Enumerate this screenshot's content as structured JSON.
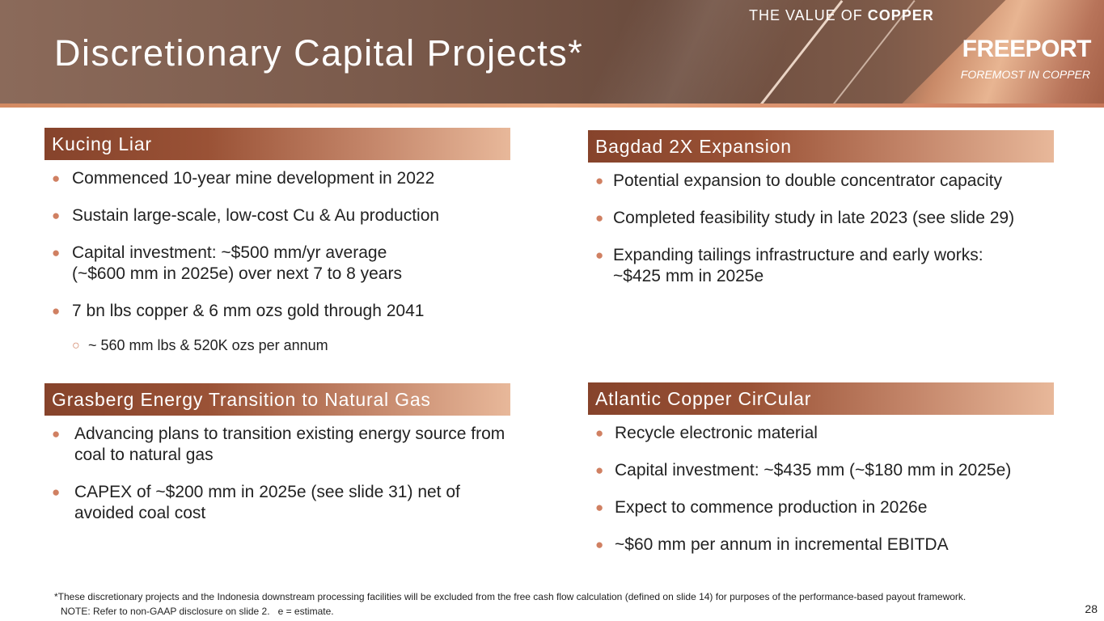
{
  "header": {
    "title": "Discretionary Capital Projects*",
    "tagline_prefix": "THE VALUE OF ",
    "tagline_emphasis": "COPPER",
    "brand": "FREEPORT",
    "brand_sub": "FOREMOST IN COPPER"
  },
  "colors": {
    "accent": "#c4866a",
    "bullet": "#d08062",
    "header_start": "#86432b",
    "header_end": "#e8b89a"
  },
  "sections": {
    "kucing": {
      "title": "Kucing Liar",
      "bullets": [
        "Commenced 10-year mine development in 2022",
        "Sustain large-scale, low-cost Cu & Au production",
        "Capital investment: ~$500 mm/yr average (~$600 mm in 2025e) over next 7 to 8 years",
        "7 bn lbs copper & 6 mm ozs gold through 2041"
      ],
      "sub_bullet": "~ 560 mm lbs & 520K ozs per annum"
    },
    "bagdad": {
      "title": "Bagdad 2X Expansion",
      "bullets": [
        "Potential expansion to double concentrator capacity",
        "Completed feasibility study in late 2023 (see slide 29)",
        "Expanding tailings infrastructure and early works: ~$425 mm in 2025e"
      ]
    },
    "grasberg": {
      "title": "Grasberg Energy Transition to Natural Gas",
      "bullets": [
        "Advancing plans to transition existing energy source from coal to natural gas",
        "CAPEX of ~$200 mm in 2025e (see slide 31) net of avoided coal cost"
      ]
    },
    "atlantic": {
      "title": "Atlantic Copper CirCular",
      "bullets": [
        "Recycle electronic material",
        "Capital investment: ~$435 mm (~$180 mm in 2025e)",
        "Expect to commence production in 2026e",
        "~$60 mm per annum in incremental EBITDA"
      ]
    }
  },
  "footer": {
    "footnote": "*These discretionary projects and the Indonesia downstream processing facilities will be excluded from the free cash flow calculation (defined on slide 14) for purposes of the performance-based payout framework.",
    "note": "NOTE: Refer to non-GAAP disclosure on slide 2.   e = estimate.",
    "page_number": "28"
  },
  "icons": {
    "bullet": "filled-circle",
    "sub_bullet": "hollow-circle"
  }
}
